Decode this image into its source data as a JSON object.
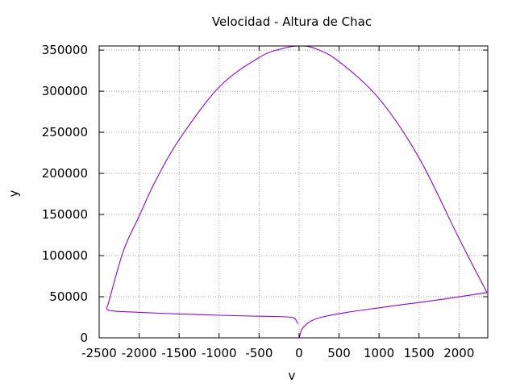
{
  "chart_data": {
    "type": "line",
    "title": "Velocidad - Altura de Chac",
    "xlabel": "v",
    "ylabel": "y",
    "xlim": [
      -2500,
      2360
    ],
    "ylim": [
      0,
      355000
    ],
    "xticks": [
      -2500,
      -2000,
      -1500,
      -1000,
      -500,
      0,
      500,
      1000,
      1500,
      2000
    ],
    "yticks": [
      0,
      50000,
      100000,
      150000,
      200000,
      250000,
      300000,
      350000
    ],
    "grid": true,
    "line_color": "#9400d3",
    "series": [
      {
        "x": [
          2350,
          1800,
          1500,
          1300,
          1000,
          600,
          300,
          150,
          70,
          30,
          15,
          0
        ],
        "y": [
          55000,
          47000,
          43000,
          40500,
          36500,
          31000,
          25500,
          20500,
          14500,
          9500,
          4500,
          0
        ]
      },
      {
        "x": [
          -15,
          -50,
          -100,
          -300,
          -600,
          -1000,
          -1500,
          -2000,
          -2300,
          -2400,
          -2390
        ],
        "y": [
          17000,
          23000,
          25000,
          26000,
          26500,
          27500,
          29000,
          31000,
          32500,
          34500,
          40000
        ]
      },
      {
        "x": [
          -2390,
          -2200,
          -2000,
          -1800,
          -1500,
          -1000,
          -500,
          -200,
          0,
          200,
          500,
          1000,
          1500,
          2000,
          2350
        ],
        "y": [
          40000,
          105000,
          148000,
          190000,
          241000,
          305000,
          341000,
          352000,
          355000,
          352000,
          336000,
          291000,
          219000,
          121000,
          55000
        ]
      }
    ]
  }
}
